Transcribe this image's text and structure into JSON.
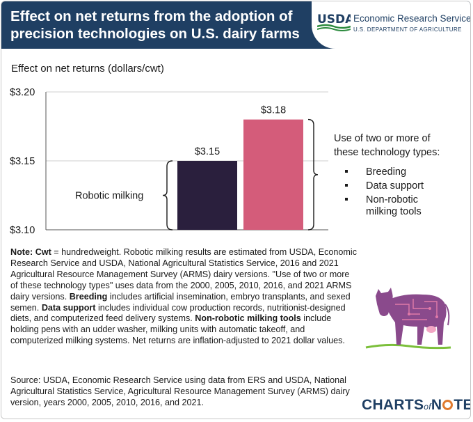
{
  "header": {
    "title": "Effect on net returns from the adoption of precision technologies on U.S. dairy farms",
    "agency_logo": "USDA",
    "agency_name": "Economic Research Service",
    "department": "U.S. DEPARTMENT OF AGRICULTURE"
  },
  "chart_data": {
    "type": "bar",
    "ylabel": "Effect on net returns (dollars/cwt)",
    "ylim": [
      3.1,
      3.2
    ],
    "yticks": [
      3.1,
      3.15,
      3.2
    ],
    "ytick_labels": [
      "$3.10",
      "$3.15",
      "$3.20"
    ],
    "grid": true,
    "categories": [
      "Robotic milking",
      "Use of two or more of these technology types:"
    ],
    "values": [
      3.15,
      3.18
    ],
    "value_labels": [
      "$3.15",
      "$3.18"
    ],
    "colors": [
      "#2a1f3d",
      "#d45c7a"
    ],
    "annotations": {
      "left_label": "Robotic milking",
      "right_heading_line1": "Use of two or more of",
      "right_heading_line2": "these technology types:",
      "right_items": [
        "Breeding",
        "Data support",
        "Non-robotic",
        "milking tools"
      ]
    }
  },
  "note": {
    "label_note": "Note:",
    "term_cwt": "Cwt",
    "text_cwt": " = hundredweight. Robotic milking results are estimated from USDA, Economic Research Service and USDA, National Agricultural Statistics Service, 2016 and 2021 Agricultural Resource Management Survey (ARMS) dairy versions. \"Use of two or more of these technology types\" uses data from the 2000, 2005, 2010, 2016, and 2021 ARMS dairy versions. ",
    "term_breeding": "Breeding",
    "text_breeding": " includes artificial insemination, embryo transplants, and sexed semen. ",
    "term_data": "Data support",
    "text_data": " includes individual cow production records, nutritionist-designed diets, and computerized feed delivery systems. ",
    "term_nonrobotic": "Non-robotic milking tools",
    "text_nonrobotic": " include holding pens with an udder washer, milking units with automatic takeoff, and computerized milking systems. Net returns are inflation-adjusted to 2021 dollar values."
  },
  "source": "Source: USDA, Economic Research Service using data from ERS and USDA, National Agricultural Statistics Service, Agricultural Resource Management Survey (ARMS) dairy version, years 2000, 2005, 2010, 2016, and 2021.",
  "footer_logo": {
    "part1": "CHARTS",
    "part2": "of",
    "part3": "N",
    "part4": "TE"
  },
  "colors": {
    "header_bg": "#1f3f63",
    "bar_robotic": "#2a1f3d",
    "bar_two_or_more": "#d45c7a",
    "cow": "#8a4a8c"
  },
  "icons": [
    "usda-logo-icon",
    "cow-illustration-icon"
  ]
}
